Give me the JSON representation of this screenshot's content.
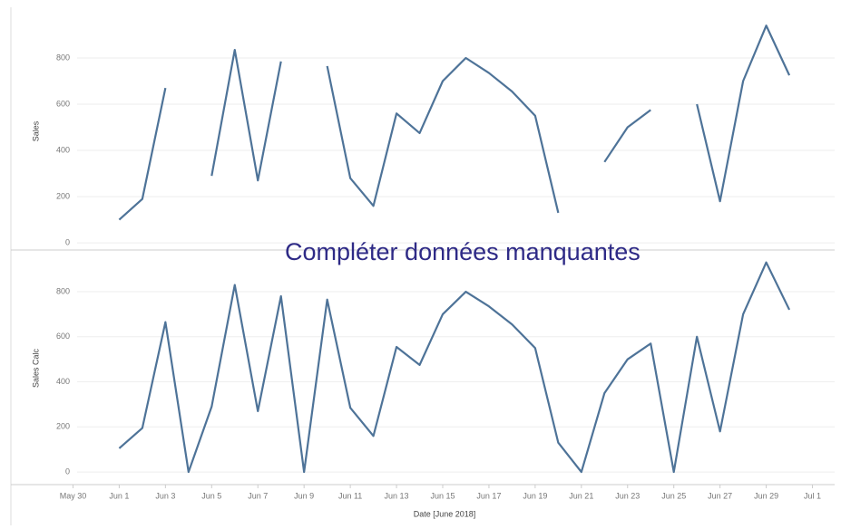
{
  "chart_data": [
    {
      "type": "line",
      "y_label": "Sales",
      "color": "#4e7398",
      "grid": true,
      "x": [
        "2018-06-01",
        "2018-06-02",
        "2018-06-03",
        "2018-06-04",
        "2018-06-05",
        "2018-06-06",
        "2018-06-07",
        "2018-06-08",
        "2018-06-09",
        "2018-06-10",
        "2018-06-11",
        "2018-06-12",
        "2018-06-13",
        "2018-06-14",
        "2018-06-15",
        "2018-06-16",
        "2018-06-17",
        "2018-06-18",
        "2018-06-19",
        "2018-06-20",
        "2018-06-21",
        "2018-06-22",
        "2018-06-23",
        "2018-06-24",
        "2018-06-25",
        "2018-06-26",
        "2018-06-27",
        "2018-06-28",
        "2018-06-29",
        "2018-06-30"
      ],
      "values": [
        100,
        190,
        670,
        null,
        290,
        835,
        270,
        785,
        null,
        765,
        280,
        160,
        560,
        475,
        700,
        800,
        735,
        655,
        550,
        130,
        null,
        350,
        500,
        575,
        null,
        600,
        180,
        700,
        940,
        725
      ],
      "xlim": [
        "2018-05-29",
        "2018-07-02"
      ],
      "ylim": [
        -27,
        992
      ],
      "yticks": [
        0,
        200,
        400,
        600,
        800
      ]
    },
    {
      "type": "line",
      "y_label": "Sales Calc",
      "color": "#4e7398",
      "grid": true,
      "x": [
        "2018-06-01",
        "2018-06-02",
        "2018-06-03",
        "2018-06-04",
        "2018-06-05",
        "2018-06-06",
        "2018-06-07",
        "2018-06-08",
        "2018-06-09",
        "2018-06-10",
        "2018-06-11",
        "2018-06-12",
        "2018-06-13",
        "2018-06-14",
        "2018-06-15",
        "2018-06-16",
        "2018-06-17",
        "2018-06-18",
        "2018-06-19",
        "2018-06-20",
        "2018-06-21",
        "2018-06-22",
        "2018-06-23",
        "2018-06-24",
        "2018-06-25",
        "2018-06-26",
        "2018-06-27",
        "2018-06-28",
        "2018-06-29",
        "2018-06-30"
      ],
      "values": [
        105,
        195,
        665,
        0,
        290,
        830,
        270,
        780,
        0,
        765,
        285,
        160,
        555,
        475,
        700,
        800,
        735,
        655,
        550,
        130,
        0,
        350,
        500,
        570,
        0,
        600,
        180,
        700,
        930,
        720
      ],
      "xlim": [
        "2018-05-29",
        "2018-07-02"
      ],
      "ylim": [
        -56,
        977
      ],
      "yticks": [
        0,
        200,
        400,
        600,
        800
      ],
      "x_label": "Date [June 2018]",
      "xticks": [
        {
          "value": "2018-05-30",
          "label": "May 30"
        },
        {
          "value": "2018-06-01",
          "label": "Jun 1"
        },
        {
          "value": "2018-06-03",
          "label": "Jun 3"
        },
        {
          "value": "2018-06-05",
          "label": "Jun 5"
        },
        {
          "value": "2018-06-07",
          "label": "Jun 7"
        },
        {
          "value": "2018-06-09",
          "label": "Jun 9"
        },
        {
          "value": "2018-06-11",
          "label": "Jun 11"
        },
        {
          "value": "2018-06-13",
          "label": "Jun 13"
        },
        {
          "value": "2018-06-15",
          "label": "Jun 15"
        },
        {
          "value": "2018-06-17",
          "label": "Jun 17"
        },
        {
          "value": "2018-06-19",
          "label": "Jun 19"
        },
        {
          "value": "2018-06-21",
          "label": "Jun 21"
        },
        {
          "value": "2018-06-23",
          "label": "Jun 23"
        },
        {
          "value": "2018-06-25",
          "label": "Jun 25"
        },
        {
          "value": "2018-06-27",
          "label": "Jun 27"
        },
        {
          "value": "2018-06-29",
          "label": "Jun 29"
        },
        {
          "value": "2018-07-01",
          "label": "Jul 1"
        }
      ]
    }
  ],
  "annotation": "Compléter données manquantes"
}
